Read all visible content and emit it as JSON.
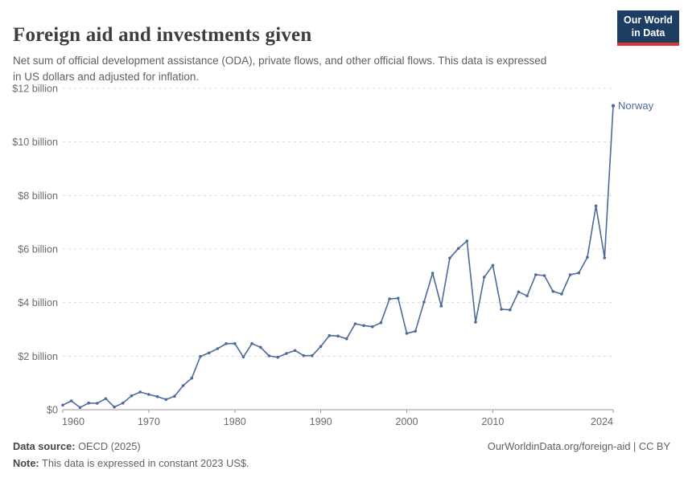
{
  "header": {
    "title": "Foreign aid and investments given",
    "subtitle_line1": "Net sum of official development assistance (ODA), private flows, and other official flows. This data is expressed",
    "subtitle_line2": "in US dollars and adjusted for inflation.",
    "logo_line1": "Our World",
    "logo_line2": "in Data"
  },
  "chart_data": {
    "type": "line",
    "title": "Foreign aid and investments given",
    "xlabel": "",
    "ylabel": "",
    "xlim": [
      1960,
      2024
    ],
    "ylim": [
      0,
      12
    ],
    "grid": "horizontal-dashed",
    "legend_position": "end-of-line-label",
    "x_ticks": [
      1960,
      1970,
      1980,
      1990,
      2000,
      2010,
      2024
    ],
    "y_ticks": [
      {
        "value": 0,
        "label": "$0"
      },
      {
        "value": 2,
        "label": "$2 billion"
      },
      {
        "value": 4,
        "label": "$4 billion"
      },
      {
        "value": 6,
        "label": "$6 billion"
      },
      {
        "value": 8,
        "label": "$8 billion"
      },
      {
        "value": 10,
        "label": "$10 billion"
      },
      {
        "value": 12,
        "label": "$12 billion"
      }
    ],
    "unit": "US$ billion, constant 2023 prices",
    "series": [
      {
        "name": "Norway",
        "color": "#4c6a9c",
        "x": [
          1960,
          1961,
          1962,
          1963,
          1964,
          1965,
          1966,
          1967,
          1968,
          1969,
          1970,
          1971,
          1972,
          1973,
          1974,
          1975,
          1976,
          1977,
          1978,
          1979,
          1980,
          1981,
          1982,
          1983,
          1984,
          1985,
          1986,
          1987,
          1988,
          1989,
          1990,
          1991,
          1992,
          1993,
          1994,
          1995,
          1996,
          1997,
          1998,
          1999,
          2000,
          2001,
          2002,
          2003,
          2004,
          2005,
          2006,
          2007,
          2008,
          2009,
          2010,
          2011,
          2012,
          2013,
          2014,
          2015,
          2016,
          2017,
          2018,
          2019,
          2020,
          2021,
          2022,
          2023,
          2024
        ],
        "values": [
          0.17,
          0.33,
          0.08,
          0.25,
          0.24,
          0.41,
          0.1,
          0.25,
          0.52,
          0.66,
          0.57,
          0.49,
          0.38,
          0.5,
          0.9,
          1.18,
          1.99,
          2.12,
          2.28,
          2.47,
          2.47,
          1.97,
          2.47,
          2.33,
          2.01,
          1.96,
          2.1,
          2.21,
          2.02,
          2.02,
          2.36,
          2.77,
          2.75,
          2.65,
          3.21,
          3.14,
          3.1,
          3.25,
          4.14,
          4.16,
          2.85,
          2.93,
          4.02,
          5.1,
          3.87,
          5.66,
          6.02,
          6.3,
          3.27,
          4.95,
          5.39,
          3.75,
          3.73,
          4.4,
          4.25,
          5.04,
          5.01,
          4.42,
          4.32,
          5.04,
          5.11,
          5.69,
          7.61,
          5.67,
          11.35
        ]
      }
    ]
  },
  "footer": {
    "source_label": "Data source:",
    "source_value": " OECD (2025)",
    "note_label": "Note:",
    "note_value": " This data is expressed in constant 2023 US$.",
    "link": "OurWorldinData.org/foreign-aid | CC BY"
  },
  "colors": {
    "line": "#4c6a9c",
    "gridline": "#dcdcdc",
    "axis": "#9a9a9a",
    "tick_label": "#6b6b6b",
    "logo_bg": "#1d3d63",
    "logo_accent": "#d73a35"
  }
}
